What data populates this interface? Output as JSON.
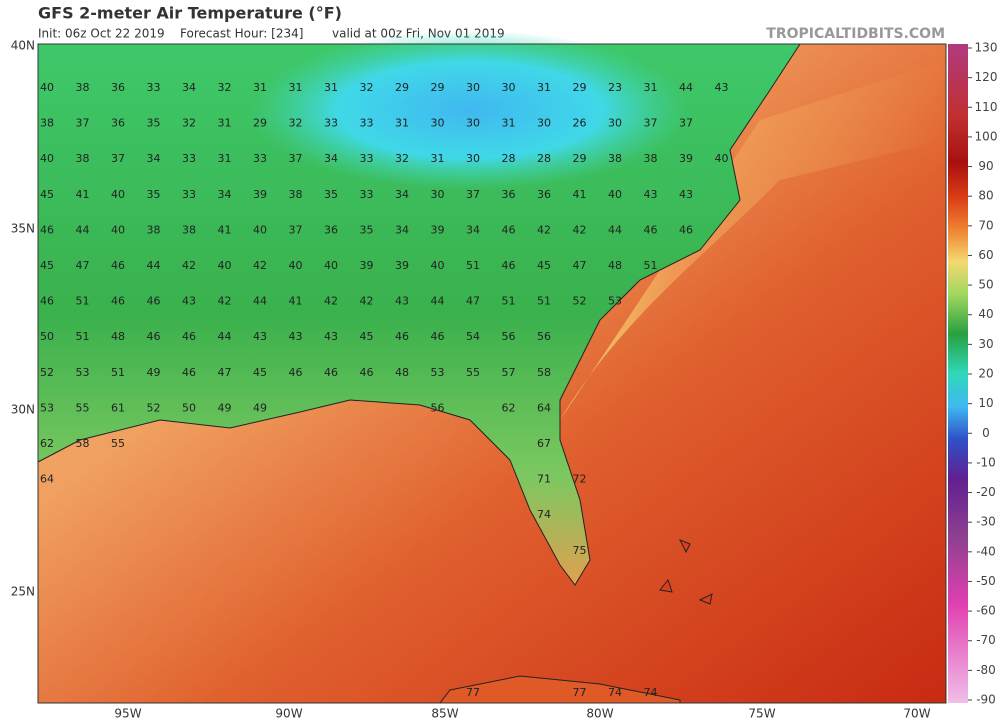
{
  "header": {
    "title": "GFS 2-meter Air Temperature (°F)",
    "init": "Init: 06z Oct 22 2019",
    "forecast_hour": "Forecast Hour: [234]",
    "valid": "valid at 00z Fri, Nov 01 2019",
    "source": "TROPICALTIDBITS.COM"
  },
  "map": {
    "lat_labels": [
      "40N",
      "35N",
      "30N",
      "25N"
    ],
    "lon_labels": [
      "95W",
      "90W",
      "85W",
      "80W",
      "75W",
      "70W"
    ],
    "stations": [
      [
        40,
        38,
        36,
        33,
        34,
        32,
        31,
        31,
        31,
        32,
        29,
        29,
        30,
        30,
        31,
        29,
        23,
        31,
        44,
        43
      ],
      [
        38,
        37,
        36,
        35,
        32,
        31,
        29,
        32,
        33,
        33,
        31,
        30,
        30,
        31,
        30,
        26,
        30,
        37,
        37
      ],
      [
        40,
        38,
        37,
        34,
        33,
        31,
        33,
        37,
        34,
        33,
        32,
        31,
        30,
        28,
        28,
        29,
        38,
        38,
        39,
        40
      ],
      [
        45,
        41,
        40,
        35,
        33,
        34,
        39,
        38,
        35,
        33,
        34,
        30,
        37,
        36,
        36,
        41,
        40,
        43,
        43
      ],
      [
        46,
        44,
        40,
        38,
        38,
        41,
        40,
        37,
        36,
        35,
        34,
        39,
        34,
        46,
        42,
        42,
        44,
        46,
        46
      ],
      [
        45,
        47,
        46,
        44,
        42,
        40,
        42,
        40,
        40,
        39,
        39,
        40,
        51,
        46,
        45,
        47,
        48,
        51
      ],
      [
        46,
        51,
        46,
        46,
        43,
        42,
        44,
        41,
        42,
        42,
        43,
        44,
        47,
        51,
        51,
        52,
        53
      ],
      [
        50,
        51,
        48,
        46,
        46,
        44,
        43,
        43,
        43,
        45,
        46,
        46,
        54,
        56,
        56
      ],
      [
        52,
        53,
        51,
        49,
        46,
        47,
        45,
        46,
        46,
        46,
        48,
        53,
        55,
        57,
        58
      ],
      [
        53,
        55,
        61,
        52,
        50,
        49,
        49,
        56,
        62,
        64
      ],
      [
        62,
        58,
        55,
        67
      ],
      [
        64,
        71,
        72
      ],
      [
        74
      ],
      [
        75
      ],
      [
        77,
        77,
        74,
        74
      ]
    ]
  },
  "colorbar": {
    "ticks": [
      130,
      120,
      110,
      100,
      90,
      80,
      70,
      60,
      50,
      40,
      30,
      20,
      10,
      0,
      -10,
      -20,
      -30,
      -40,
      -50,
      -60,
      -70,
      -80,
      -90
    ]
  }
}
